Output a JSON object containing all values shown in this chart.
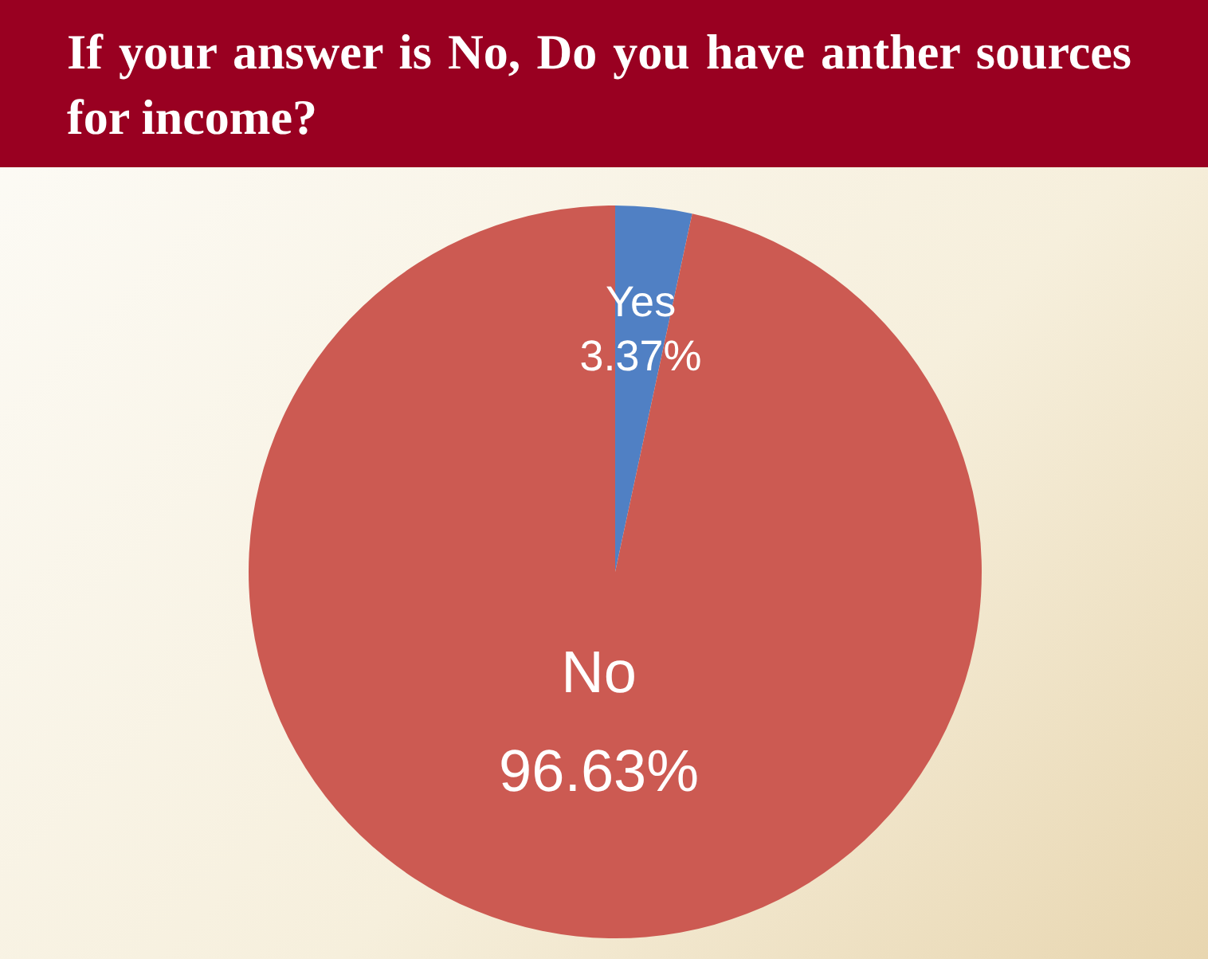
{
  "chart_data": {
    "type": "pie",
    "title": "If your answer is No, Do you have anther sources for income?",
    "categories": [
      "Yes",
      "No"
    ],
    "values": [
      3.37,
      96.63
    ],
    "value_labels": [
      "3.37%",
      "96.63%"
    ],
    "colors": [
      "#5080c4",
      "#cc5a52"
    ]
  }
}
